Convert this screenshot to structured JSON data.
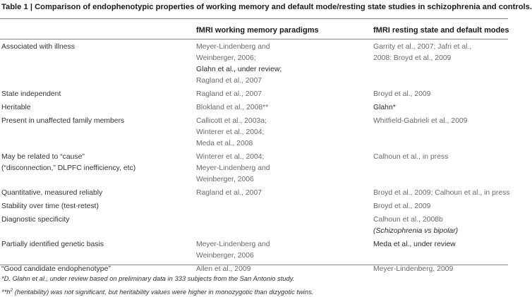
{
  "caption": "Table 1 | Comparison of endophenotypic properties of working memory and default mode/resting state studies in schizophrenia and controls.",
  "headers": {
    "col2": "fMRI working memory paradigms",
    "col3": "fMRI resting state and default modes"
  },
  "rows": [
    {
      "property": [
        "Associated with illness"
      ],
      "wm": [
        "Meyer-Lindenberg and",
        "Weinberger, 2006;",
        "Glahn et al., under review;",
        "Ragland et al., 2007"
      ],
      "rs": [
        "Garrity et al., 2007; Jafri et al.,",
        "2008: Broyd et al., 2009"
      ]
    },
    {
      "property": [
        "State independent"
      ],
      "wm": [
        "Ragland et al., 2007"
      ],
      "rs": [
        "Broyd et al., 2009"
      ]
    },
    {
      "property": [
        "Heritable"
      ],
      "wm": [
        "Blokland et al., 2008**"
      ],
      "rs": [
        "Glahn*"
      ]
    },
    {
      "property": [
        "Present in unaffected family members"
      ],
      "wm": [
        "Callicott et al., 2003a;",
        "Winterer et al., 2004;",
        "Meda et al., 2008"
      ],
      "rs": [
        "Whitfield-Gabrieli et al., 2009"
      ]
    },
    {
      "property": [
        "May be related to “cause”",
        "(“disconnection,” DLPFC inefficiency, etc)"
      ],
      "wm": [
        "Winterer et al., 2004;",
        "Meyer-Lindenberg and",
        "Weinberger, 2006"
      ],
      "rs": [
        "Calhoun et al., in press"
      ]
    },
    {
      "property": [
        "Quantitative, measured reliably"
      ],
      "wm": [
        "Ragland et al., 2007"
      ],
      "rs": [
        "Broyd et al., 2009; Calhoun et al., in press"
      ]
    },
    {
      "property": [
        "Stability over time (test-retest)"
      ],
      "wm": [],
      "rs": [
        "Broyd et al., 2009"
      ]
    },
    {
      "property": [
        "Diagnostic specificity"
      ],
      "wm": [],
      "rs": [
        "Calhoun et al., 2008b",
        "(Schizophrenia vs bipolar)"
      ]
    },
    {
      "property": [
        "Partially identified genetic basis"
      ],
      "wm": [
        "Meyer-Lindenberg and",
        "Weinberger, 2006"
      ],
      "rs": [
        "Meda et al., under review"
      ]
    },
    {
      "property": [
        "“Good candidate endophenotype”"
      ],
      "wm": [
        "Allen et al., 2009"
      ],
      "rs": [
        "Meyer-Lindenberg, 2009"
      ]
    }
  ],
  "footnotes": {
    "note1": "*D. Glahn et al., under review based on preliminary data in 333 subjects from the San Antonio study.",
    "note2_prefix": "**h",
    "note2_sup": "2",
    "note2_text": " (heritability) was not significant, but heritability values were higher in monozygotic than dizygotic twins."
  }
}
